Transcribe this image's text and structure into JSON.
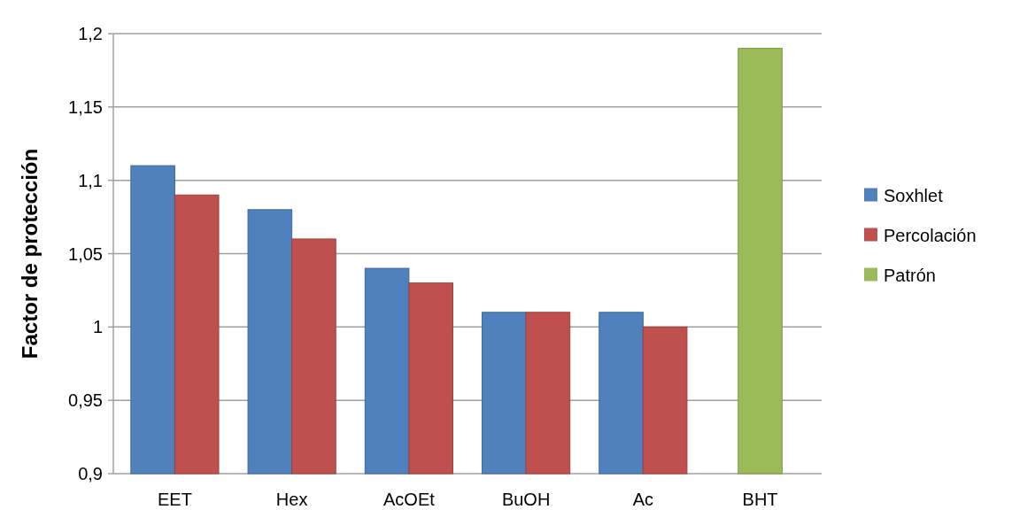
{
  "chart_data": {
    "type": "bar",
    "ylabel": "Factor de protección",
    "categories": [
      "EET",
      "Hex",
      "AcOEt",
      "BuOH",
      "Ac",
      "BHT"
    ],
    "series": [
      {
        "name": "Soxhlet",
        "color": "#4f81bd",
        "values": [
          1.11,
          1.08,
          1.04,
          1.01,
          1.01,
          null
        ]
      },
      {
        "name": "Percolación",
        "color": "#c0504d",
        "values": [
          1.09,
          1.06,
          1.03,
          1.01,
          1.0,
          null
        ]
      },
      {
        "name": "Patrón",
        "color": "#9bbb59",
        "values": [
          null,
          null,
          null,
          null,
          null,
          1.19
        ]
      }
    ],
    "ylim": [
      0.9,
      1.2
    ],
    "yticks": [
      {
        "value": 0.9,
        "label": "0,9"
      },
      {
        "value": 0.95,
        "label": "0,95"
      },
      {
        "value": 1,
        "label": "1"
      },
      {
        "value": 1.05,
        "label": "1,05"
      },
      {
        "value": 1.1,
        "label": "1,1"
      },
      {
        "value": 1.15,
        "label": "1,15"
      },
      {
        "value": 1.2,
        "label": "1,2"
      }
    ],
    "grid": "y",
    "legend": "right"
  }
}
